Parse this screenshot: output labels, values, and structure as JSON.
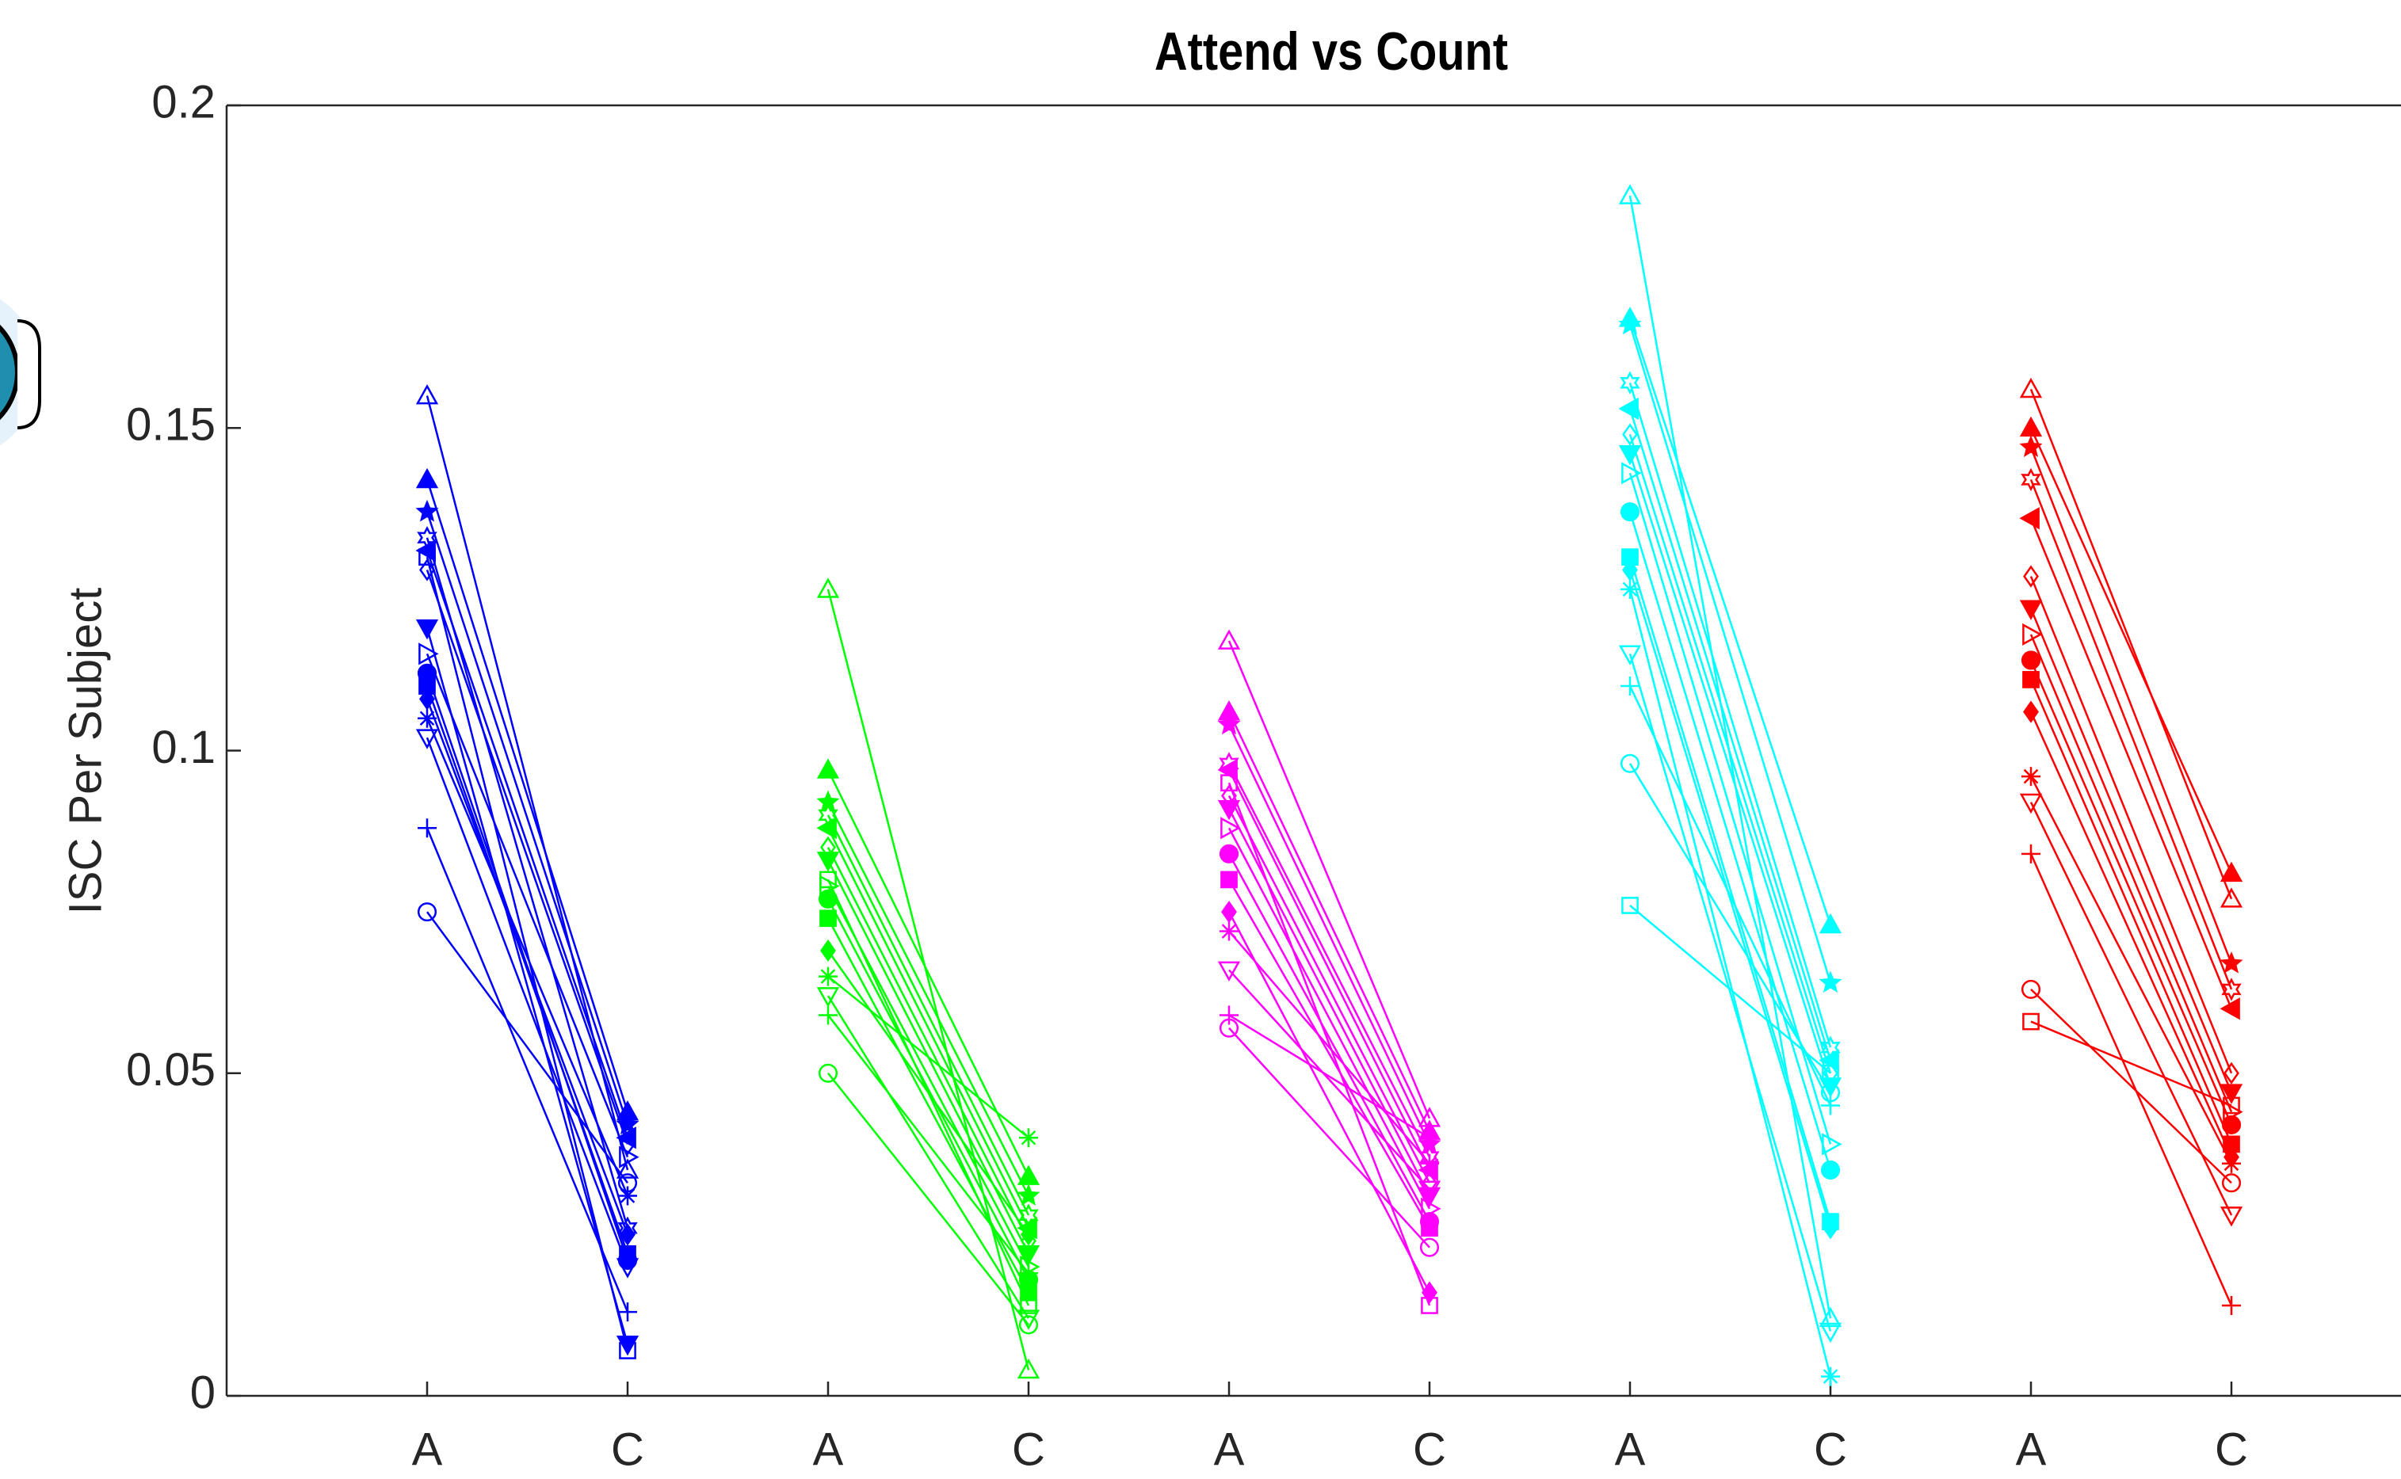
{
  "chart_data": {
    "type": "paired-line",
    "title": "Attend vs Count",
    "y_label": "ISC Per Subject",
    "categories": [
      "A",
      "C",
      "A",
      "C",
      "A",
      "C",
      "A",
      "C",
      "A",
      "C"
    ],
    "ylim": [
      0,
      0.2
    ],
    "yticks": [
      0,
      0.05,
      0.1,
      0.15,
      0.2
    ],
    "series": [
      {
        "color": "#0000ff",
        "values": [
          [
            0.155,
            0.035
          ],
          [
            0.142,
            0.044
          ],
          [
            0.137,
            0.042
          ],
          [
            0.133,
            0.026
          ],
          [
            0.131,
            0.04
          ],
          [
            0.128,
            0.039
          ],
          [
            0.119,
            0.008
          ],
          [
            0.115,
            0.037
          ],
          [
            0.112,
            0.021
          ],
          [
            0.11,
            0.022
          ],
          [
            0.108,
            0.025
          ],
          [
            0.105,
            0.031
          ],
          [
            0.102,
            0.02
          ],
          [
            0.088,
            0.013
          ],
          [
            0.075,
            0.033
          ],
          [
            0.13,
            0.007
          ]
        ]
      },
      {
        "color": "#00ff00",
        "values": [
          [
            0.125,
            0.004
          ],
          [
            0.097,
            0.034
          ],
          [
            0.092,
            0.031
          ],
          [
            0.09,
            0.028
          ],
          [
            0.088,
            0.026
          ],
          [
            0.085,
            0.024
          ],
          [
            0.083,
            0.022
          ],
          [
            0.079,
            0.02
          ],
          [
            0.077,
            0.018
          ],
          [
            0.074,
            0.016
          ],
          [
            0.069,
            0.025
          ],
          [
            0.065,
            0.04
          ],
          [
            0.062,
            0.012
          ],
          [
            0.059,
            0.019
          ],
          [
            0.05,
            0.011
          ],
          [
            0.08,
            0.014
          ]
        ]
      },
      {
        "color": "#ff00ff",
        "values": [
          [
            0.117,
            0.043
          ],
          [
            0.106,
            0.041
          ],
          [
            0.104,
            0.039
          ],
          [
            0.098,
            0.037
          ],
          [
            0.097,
            0.035
          ],
          [
            0.093,
            0.033
          ],
          [
            0.091,
            0.031
          ],
          [
            0.088,
            0.029
          ],
          [
            0.084,
            0.027
          ],
          [
            0.08,
            0.026
          ],
          [
            0.075,
            0.016
          ],
          [
            0.072,
            0.036
          ],
          [
            0.066,
            0.032
          ],
          [
            0.059,
            0.04
          ],
          [
            0.057,
            0.023
          ],
          [
            0.095,
            0.014
          ]
        ]
      },
      {
        "color": "#00ffff",
        "values": [
          [
            0.186,
            0.012
          ],
          [
            0.167,
            0.073
          ],
          [
            0.166,
            0.064
          ],
          [
            0.157,
            0.054
          ],
          [
            0.153,
            0.052
          ],
          [
            0.149,
            0.05
          ],
          [
            0.146,
            0.048
          ],
          [
            0.143,
            0.039
          ],
          [
            0.137,
            0.035
          ],
          [
            0.13,
            0.027
          ],
          [
            0.128,
            0.026
          ],
          [
            0.125,
            0.003
          ],
          [
            0.115,
            0.01
          ],
          [
            0.11,
            0.045
          ],
          [
            0.098,
            0.047
          ],
          [
            0.076,
            0.05
          ]
        ]
      },
      {
        "color": "#ff0000",
        "values": [
          [
            0.156,
            0.077
          ],
          [
            0.15,
            0.081
          ],
          [
            0.147,
            0.067
          ],
          [
            0.142,
            0.063
          ],
          [
            0.136,
            0.06
          ],
          [
            0.127,
            0.05
          ],
          [
            0.122,
            0.047
          ],
          [
            0.118,
            0.044
          ],
          [
            0.114,
            0.042
          ],
          [
            0.111,
            0.039
          ],
          [
            0.106,
            0.037
          ],
          [
            0.096,
            0.036
          ],
          [
            0.092,
            0.028
          ],
          [
            0.084,
            0.014
          ],
          [
            0.063,
            0.033
          ],
          [
            0.058,
            0.045
          ]
        ]
      }
    ]
  }
}
